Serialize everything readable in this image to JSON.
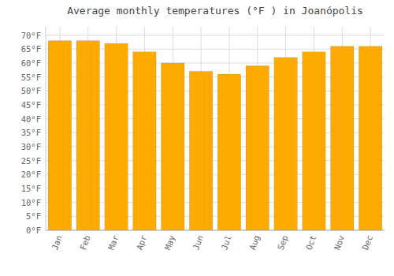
{
  "chart_data": {
    "type": "bar",
    "title": "Average monthly temperatures (°F ) in Joanópolis",
    "categories": [
      "Jan",
      "Feb",
      "Mar",
      "Apr",
      "May",
      "Jun",
      "Jul",
      "Aug",
      "Sep",
      "Oct",
      "Nov",
      "Dec"
    ],
    "values": [
      68,
      68,
      67,
      64,
      60,
      57,
      56,
      59,
      62,
      64,
      66,
      66
    ],
    "color": "#FFAA00",
    "ylim": [
      0,
      73
    ],
    "yticks": [
      {
        "value": 0,
        "label": "0°F"
      },
      {
        "value": 5,
        "label": "5°F"
      },
      {
        "value": 10,
        "label": "10°F"
      },
      {
        "value": 15,
        "label": "15°F"
      },
      {
        "value": 20,
        "label": "20°F"
      },
      {
        "value": 25,
        "label": "25°F"
      },
      {
        "value": 30,
        "label": "30°F"
      },
      {
        "value": 35,
        "label": "35°F"
      },
      {
        "value": 40,
        "label": "40°F"
      },
      {
        "value": 45,
        "label": "45°F"
      },
      {
        "value": 50,
        "label": "50°F"
      },
      {
        "value": 55,
        "label": "55°F"
      },
      {
        "value": 60,
        "label": "60°F"
      },
      {
        "value": 65,
        "label": "65°F"
      },
      {
        "value": 70,
        "label": "70°F"
      }
    ],
    "grid": true
  }
}
